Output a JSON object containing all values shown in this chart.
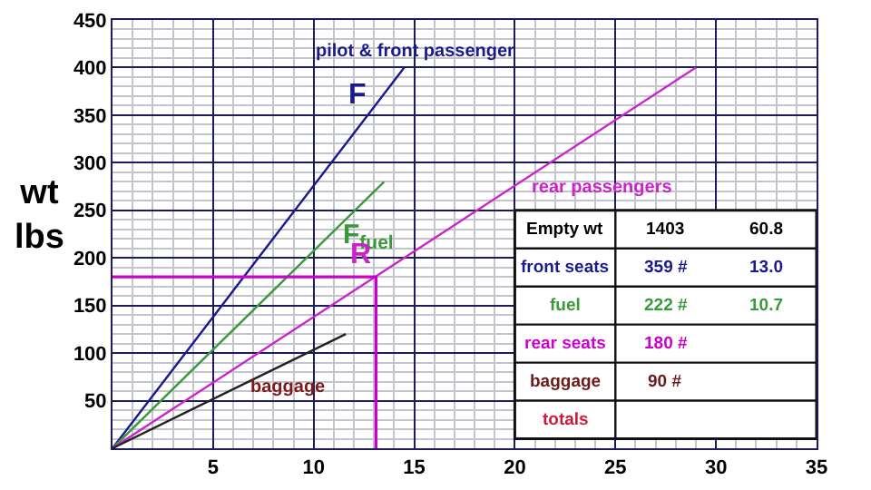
{
  "chart_data": {
    "type": "line",
    "ylabel": "wt\nlbs",
    "xlim": [
      0,
      35
    ],
    "ylim": [
      0,
      450
    ],
    "xticks": [
      5,
      10,
      15,
      20,
      25,
      30,
      35
    ],
    "yticks": [
      50,
      100,
      150,
      200,
      250,
      300,
      350,
      400,
      450
    ],
    "grid": true,
    "legend": false,
    "marker": "none",
    "line_style": "solid",
    "series": [
      {
        "name": "pilot & front passenger",
        "color": "#1a1a8c",
        "x": [
          0,
          14.5
        ],
        "values": [
          0,
          400
        ]
      },
      {
        "name": "F$_{fuel}$",
        "color": "#3a9a3a",
        "x": [
          0,
          13.5
        ],
        "values": [
          0,
          280
        ]
      },
      {
        "name": "rear passengers",
        "color": "#cc22cc",
        "x": [
          0,
          29
        ],
        "values": [
          0,
          400
        ]
      },
      {
        "name": "baggage",
        "color": "#222222",
        "x": [
          0,
          11.6
        ],
        "values": [
          0,
          120
        ]
      },
      {
        "color": "#cc00cc",
        "x": [
          0,
          13.1,
          13.1
        ],
        "values": [
          180,
          180,
          0
        ]
      }
    ],
    "annotations": [
      "F",
      "R",
      "Empty wt",
      "1403",
      "60.8",
      "front seats",
      "359 #",
      "13.0",
      "fuel",
      "222 #",
      "10.7",
      "rear seats",
      "180 #",
      "baggage",
      "90 #",
      "totals"
    ]
  }
}
